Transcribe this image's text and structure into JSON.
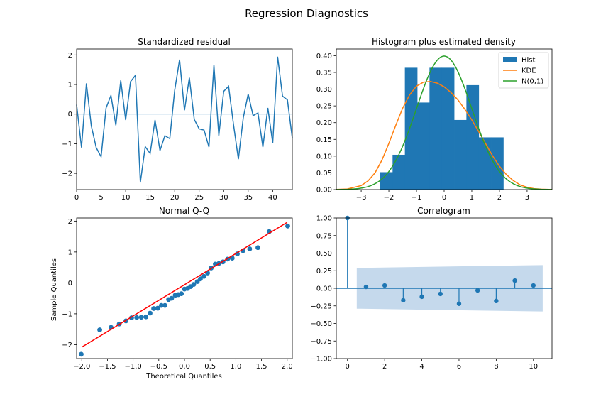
{
  "figure": {
    "title": "Regression Diagnostics"
  },
  "colors": {
    "blue": "#1f77b4",
    "orange": "#ff7f0e",
    "green": "#2ca02c",
    "red": "#ff0000",
    "band": "#c5d9ec"
  },
  "chart_data": [
    {
      "type": "line",
      "title": "Standardized residual",
      "xlabel": "",
      "ylabel": "",
      "xlim": [
        0,
        44
      ],
      "ylim": [
        -2.55,
        2.2
      ],
      "xticks": [
        0,
        5,
        10,
        15,
        20,
        25,
        30,
        35,
        40
      ],
      "yticks": [
        -2,
        -1,
        0,
        1,
        2
      ],
      "ytick_labels": [
        "−2",
        "−1",
        "0",
        "1",
        "2"
      ],
      "zero_line": 0,
      "x": [
        0,
        1,
        2,
        3,
        4,
        5,
        6,
        7,
        8,
        9,
        10,
        11,
        12,
        13,
        14,
        15,
        16,
        17,
        18,
        19,
        20,
        21,
        22,
        23,
        24,
        25,
        26,
        27,
        28,
        29,
        30,
        31,
        32,
        33,
        34,
        35,
        36,
        37,
        38,
        39,
        40,
        41,
        42,
        43,
        44
      ],
      "values": [
        0.32,
        -1.13,
        1.04,
        -0.4,
        -1.13,
        -1.44,
        0.21,
        0.63,
        -0.38,
        1.14,
        -0.2,
        1.1,
        1.31,
        -2.31,
        -1.1,
        -1.33,
        -0.2,
        -1.23,
        -0.73,
        -0.83,
        0.8,
        1.84,
        0.13,
        1.23,
        -0.18,
        -0.5,
        -0.54,
        -1.11,
        1.66,
        -0.73,
        0.77,
        0.94,
        -0.35,
        -1.52,
        -0.12,
        0.68,
        -0.05,
        0.04,
        -1.11,
        0.21,
        -0.98,
        1.94,
        0.61,
        0.48,
        -0.82
      ]
    },
    {
      "type": "bar",
      "title": "Histogram plus estimated density",
      "xlim": [
        -3.9,
        3.9
      ],
      "ylim": [
        0,
        0.42
      ],
      "xticks": [
        -3,
        -2,
        -1,
        0,
        1,
        2,
        3
      ],
      "xtick_labels": [
        "−3",
        "−2",
        "−1",
        "0",
        "1",
        "2",
        "3"
      ],
      "yticks": [
        0,
        0.05,
        0.1,
        0.15,
        0.2,
        0.25,
        0.3,
        0.35,
        0.4
      ],
      "ytick_labels": [
        "0.00",
        "0.05",
        "0.10",
        "0.15",
        "0.20",
        "0.25",
        "0.30",
        "0.35",
        "0.40"
      ],
      "bin_edges": [
        -2.31,
        -1.865,
        -1.42,
        -0.975,
        -0.53,
        -0.085,
        0.36,
        0.805,
        1.25,
        1.695,
        2.14
      ],
      "hist_values": [
        0.052,
        0.104,
        0.364,
        0.26,
        0.364,
        0.364,
        0.208,
        0.312,
        0.156,
        0.156
      ],
      "kde": {
        "x": [
          -3.9,
          -3.5,
          -3.0,
          -2.75,
          -2.5,
          -2.25,
          -2.0,
          -1.75,
          -1.5,
          -1.25,
          -1.0,
          -0.75,
          -0.5,
          -0.25,
          0,
          0.25,
          0.5,
          0.75,
          1.0,
          1.25,
          1.5,
          1.75,
          2.0,
          2.25,
          2.5,
          2.75,
          3.0,
          3.25,
          3.5,
          3.9
        ],
        "values": [
          0.0005,
          0.002,
          0.012,
          0.026,
          0.05,
          0.088,
          0.138,
          0.192,
          0.243,
          0.283,
          0.309,
          0.321,
          0.323,
          0.318,
          0.307,
          0.29,
          0.268,
          0.24,
          0.208,
          0.173,
          0.137,
          0.101,
          0.07,
          0.045,
          0.027,
          0.014,
          0.007,
          0.003,
          0.0012,
          0.0002
        ]
      },
      "normal_pdf": {
        "mean": 0,
        "std": 1
      },
      "legend": {
        "position": "upper right",
        "entries": [
          "Hist",
          "KDE",
          "N(0,1)"
        ]
      }
    },
    {
      "type": "scatter",
      "title": "Normal Q-Q",
      "xlabel": "Theoretical Quantiles",
      "ylabel": "Sample Quantiles",
      "xlim": [
        -2.1,
        2.1
      ],
      "ylim": [
        -2.45,
        2.1
      ],
      "xticks": [
        -2.0,
        -1.5,
        -1.0,
        -0.5,
        0.0,
        0.5,
        1.0,
        1.5,
        2.0
      ],
      "xtick_labels": [
        "−2.0",
        "−1.5",
        "−1.0",
        "−0.5",
        "0.0",
        "0.5",
        "1.0",
        "1.5",
        "2.0"
      ],
      "yticks": [
        -2,
        -1,
        0,
        1,
        2
      ],
      "ytick_labels": [
        "−2",
        "−1",
        "0",
        "1",
        "2"
      ],
      "x": [
        -2.01,
        -1.65,
        -1.43,
        -1.27,
        -1.14,
        -1.03,
        -0.93,
        -0.84,
        -0.75,
        -0.67,
        -0.6,
        -0.52,
        -0.45,
        -0.38,
        -0.31,
        -0.25,
        -0.18,
        -0.12,
        -0.06,
        0.0,
        0.06,
        0.12,
        0.18,
        0.25,
        0.31,
        0.38,
        0.45,
        0.52,
        0.6,
        0.67,
        0.75,
        0.84,
        0.93,
        1.03,
        1.14,
        1.27,
        1.43,
        1.65,
        2.01
      ],
      "values": [
        -2.31,
        -1.52,
        -1.44,
        -1.33,
        -1.23,
        -1.13,
        -1.12,
        -1.11,
        -1.1,
        -0.98,
        -0.83,
        -0.82,
        -0.73,
        -0.73,
        -0.54,
        -0.5,
        -0.4,
        -0.38,
        -0.35,
        -0.2,
        -0.18,
        -0.12,
        -0.05,
        0.04,
        0.13,
        0.21,
        0.32,
        0.48,
        0.61,
        0.63,
        0.68,
        0.77,
        0.8,
        0.94,
        1.04,
        1.1,
        1.14,
        1.66,
        1.84
      ],
      "fit_line": {
        "x": [
          -2.0,
          2.0
        ],
        "values": [
          -2.08,
          1.96
        ]
      }
    },
    {
      "type": "bar",
      "title": "Correlogram",
      "xlim": [
        -0.6,
        11.0
      ],
      "ylim": [
        -1.0,
        1.0
      ],
      "xticks": [
        0,
        2,
        4,
        6,
        8,
        10
      ],
      "yticks": [
        -1.0,
        -0.75,
        -0.5,
        -0.25,
        0.0,
        0.25,
        0.5,
        0.75,
        1.0
      ],
      "ytick_labels": [
        "−1.00",
        "−0.75",
        "−0.50",
        "−0.25",
        "0.00",
        "0.25",
        "0.50",
        "0.75",
        "1.00"
      ],
      "lags": [
        0,
        1,
        2,
        3,
        4,
        5,
        6,
        7,
        8,
        9,
        10
      ],
      "values": [
        1.0,
        0.02,
        0.04,
        -0.17,
        -0.12,
        -0.08,
        -0.22,
        -0.03,
        -0.18,
        0.11,
        0.04
      ],
      "confint": {
        "x": [
          0.5,
          10.5
        ],
        "upper": [
          0.29,
          0.33
        ],
        "lower": [
          -0.29,
          -0.33
        ]
      }
    }
  ]
}
